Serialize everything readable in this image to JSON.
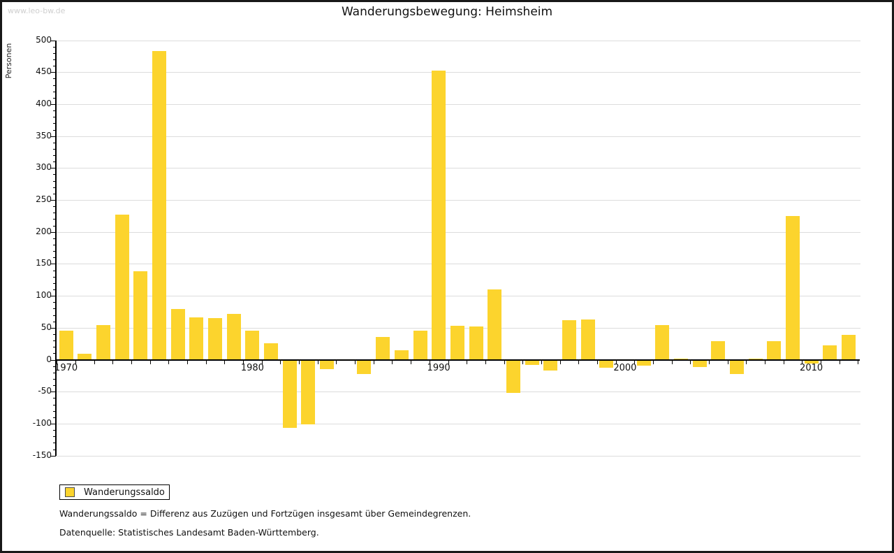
{
  "watermark": "www.leo-bw.de",
  "title": "Wanderungsbewegung: Heimsheim",
  "legend": {
    "label": "Wanderungssaldo"
  },
  "footnotes": {
    "line1": "Wanderungssaldo = Differenz aus Zuzügen und Fortzügen insgesamt über Gemeindegrenzen.",
    "line2": "Datenquelle: Statistisches Landesamt Baden-Württemberg."
  },
  "chart_data": {
    "type": "bar",
    "title": "Wanderungsbewegung: Heimsheim",
    "xlabel": "",
    "ylabel": "Personen",
    "ylim": [
      -150,
      500
    ],
    "ytick_step": 50,
    "ytick_labels": [
      500,
      450,
      400,
      350,
      300,
      250,
      200,
      150,
      100,
      50,
      0,
      -50,
      -100,
      -150
    ],
    "grid": true,
    "legend_position": "bottom-left",
    "series_name": "Wanderungssaldo",
    "bar_color": "#fcd42d",
    "categories": [
      1970,
      1971,
      1972,
      1973,
      1974,
      1975,
      1976,
      1977,
      1978,
      1979,
      1980,
      1981,
      1982,
      1983,
      1984,
      1985,
      1986,
      1987,
      1988,
      1989,
      1990,
      1991,
      1992,
      1993,
      1994,
      1995,
      1996,
      1997,
      1998,
      1999,
      2000,
      2001,
      2002,
      2003,
      2004,
      2005,
      2006,
      2007,
      2008,
      2009,
      2010,
      2011,
      2012
    ],
    "values": [
      46,
      9,
      54,
      227,
      138,
      483,
      79,
      66,
      65,
      72,
      46,
      26,
      -106,
      -100,
      -14,
      0,
      -21,
      36,
      15,
      45,
      453,
      53,
      52,
      110,
      -51,
      -7,
      -16,
      62,
      63,
      -11,
      0,
      -8,
      54,
      2,
      -10,
      29,
      -21,
      2,
      29,
      225,
      -5,
      22,
      39
    ],
    "x_tick_labels": [
      "1970",
      "1980",
      "1990",
      "2000",
      "2010"
    ]
  }
}
